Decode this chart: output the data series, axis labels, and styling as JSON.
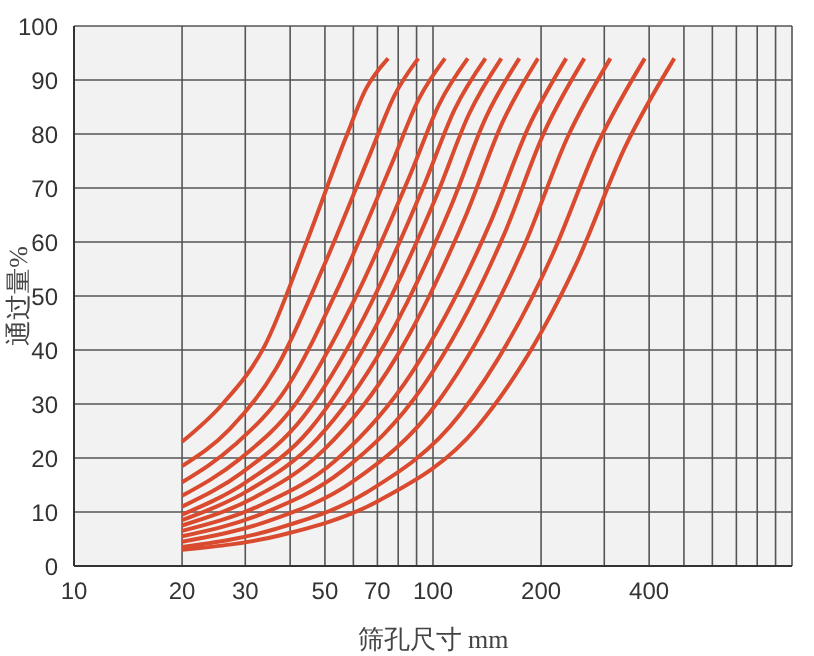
{
  "chart_data": {
    "type": "line",
    "xlabel": "筛孔尺寸 mm",
    "ylabel": "通过量%",
    "log": "x",
    "grid": true,
    "marker": "none",
    "xlim": [
      10,
      1000
    ],
    "ylim": [
      0,
      100
    ],
    "xticks": [
      10,
      20,
      30,
      {
        "value": 40,
        "label": null
      },
      50,
      {
        "value": 60,
        "label": null
      },
      70,
      {
        "value": 80,
        "label": null
      },
      {
        "value": 90,
        "label": null
      },
      100,
      200,
      {
        "value": 300,
        "label": null
      },
      400,
      {
        "value": 500,
        "label": null
      },
      {
        "value": 600,
        "label": null
      },
      {
        "value": 700,
        "label": null
      },
      {
        "value": 800,
        "label": null
      },
      {
        "value": 900,
        "label": null
      },
      {
        "value": 1000,
        "label": null
      }
    ],
    "yticks": [
      0,
      10,
      20,
      30,
      40,
      50,
      60,
      70,
      80,
      90,
      100
    ],
    "series": [
      {
        "color": "#d94a2e",
        "x": [
          20,
          26,
          34,
          44,
          57,
          65,
          75
        ],
        "values": [
          23,
          30.1,
          40.8,
          59.2,
          79.1,
          88.3,
          94
        ]
      },
      {
        "color": "#d94a2e",
        "x": [
          20,
          27.1,
          36.6,
          49.6,
          67.1,
          78.2,
          91
        ],
        "values": [
          18.5,
          25.3,
          36.6,
          55.5,
          76.6,
          87.2,
          94
        ]
      },
      {
        "color": "#d94a2e",
        "x": [
          20,
          28,
          39.3,
          55,
          77.1,
          91.2,
          108
        ],
        "values": [
          15.5,
          22.4,
          33.2,
          52.2,
          74.8,
          86.4,
          94
        ]
      },
      {
        "color": "#d94a2e",
        "x": [
          20,
          28.8,
          41.6,
          60.1,
          86.7,
          104,
          125
        ],
        "values": [
          13,
          19.7,
          30.2,
          49,
          72.7,
          85.5,
          94
        ]
      },
      {
        "color": "#d94a2e",
        "x": [
          20,
          29.5,
          43.5,
          64.3,
          94.8,
          115,
          140
        ],
        "values": [
          11,
          17.4,
          27.6,
          46.1,
          70.8,
          84.6,
          94
        ]
      },
      {
        "color": "#d94a2e",
        "x": [
          20,
          30.1,
          45.4,
          68.2,
          102.8,
          126,
          155
        ],
        "values": [
          9.5,
          15.5,
          25.3,
          43.5,
          68.9,
          83.7,
          94
        ]
      },
      {
        "color": "#d94a2e",
        "x": [
          20,
          30.8,
          47.5,
          73.3,
          113,
          140,
          174
        ],
        "values": [
          8.5,
          14.1,
          23.5,
          41,
          67.1,
          82.9,
          94
        ]
      },
      {
        "color": "#d94a2e",
        "x": [
          20,
          31.6,
          49.8,
          78.7,
          124,
          156,
          196
        ],
        "values": [
          7.5,
          12.6,
          21.6,
          38.5,
          65.2,
          82.1,
          94
        ]
      },
      {
        "color": "#d94a2e",
        "x": [
          20,
          32.7,
          53.6,
          87.7,
          144,
          184,
          235
        ],
        "values": [
          6.5,
          11.1,
          19.6,
          36,
          63.4,
          81.1,
          94
        ]
      },
      {
        "color": "#d94a2e",
        "x": [
          20,
          33.5,
          56.1,
          94.1,
          158,
          204,
          264
        ],
        "values": [
          5.5,
          9.7,
          17.7,
          33.4,
          61.5,
          80.3,
          94
        ]
      },
      {
        "color": "#d94a2e",
        "x": [
          20,
          34.7,
          60,
          104,
          180,
          237,
          312
        ],
        "values": [
          4.5,
          8.3,
          15.7,
          30.7,
          59.5,
          79.4,
          94
        ]
      },
      {
        "color": "#d94a2e",
        "x": [
          20,
          36.2,
          65.6,
          119,
          215,
          289,
          389
        ],
        "values": [
          3.5,
          6.8,
          13.7,
          28.1,
          57.6,
          78.4,
          94
        ]
      },
      {
        "color": "#d94a2e",
        "x": [
          20,
          37.6,
          70.6,
          133,
          250,
          343,
          470
        ],
        "values": [
          3,
          5.7,
          12.1,
          25.8,
          55.8,
          77.6,
          94
        ]
      }
    ]
  }
}
